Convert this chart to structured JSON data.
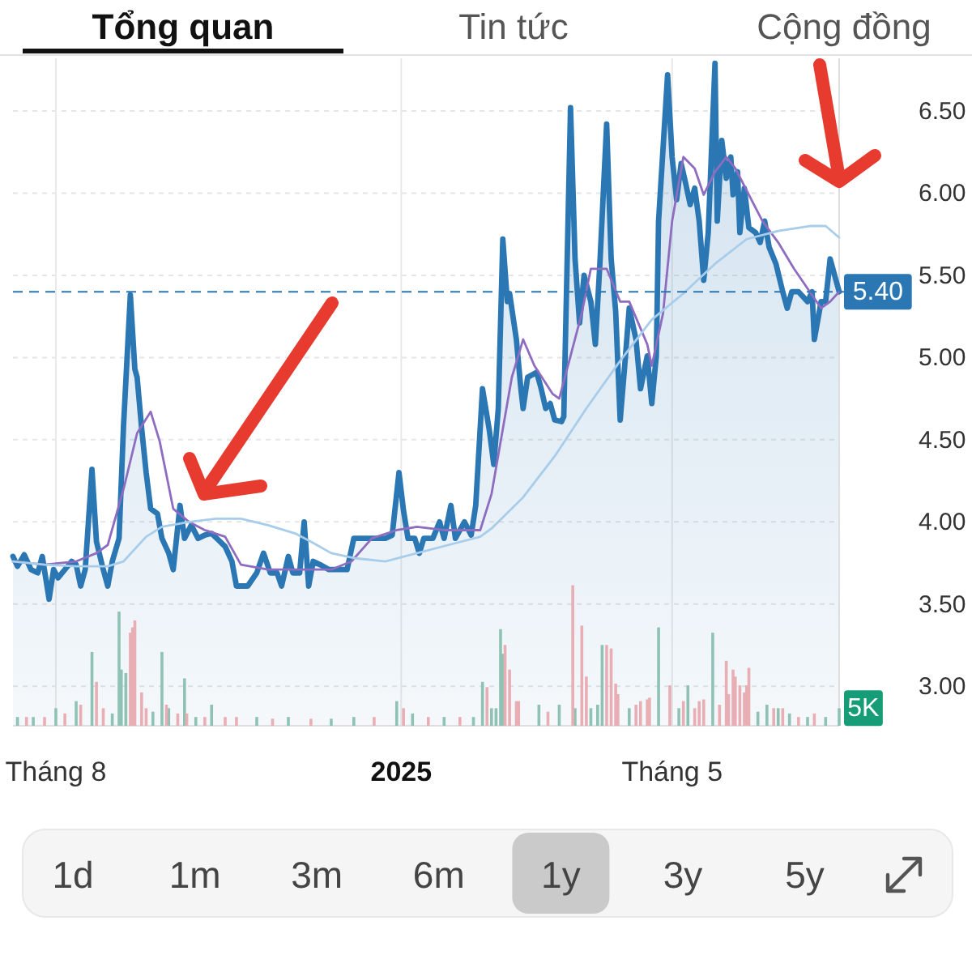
{
  "chart_data": [
    {
      "type": "other",
      "annotations": [
        "Tổng quan",
        "Tin tức",
        "Cộng đồng"
      ]
    },
    {
      "type": "area",
      "xlim": [
        "2024-07-13",
        "2025-07-14"
      ],
      "xticks": [
        {
          "value": "2024-08-01",
          "label": "Tháng 8"
        },
        {
          "value": "2025-01-01",
          "label": "2025"
        },
        {
          "value": "2025-05-01",
          "label": "Tháng 5"
        }
      ],
      "ylim": [
        2.76,
        6.82
      ],
      "yticks": [
        {
          "value": 3,
          "label": "3.00"
        },
        {
          "value": 3.5,
          "label": "3.50"
        },
        {
          "value": 4,
          "label": "4.00"
        },
        {
          "value": 4.5,
          "label": "4.50"
        },
        {
          "value": 5,
          "label": "5.00"
        },
        {
          "value": 5.5,
          "label": "5.50"
        },
        {
          "value": 6,
          "label": "6.00"
        },
        {
          "value": 6.5,
          "label": "6.50"
        }
      ],
      "y2lim": [
        0,
        190000
      ],
      "grid": true,
      "ref_lines": [
        {
          "axis": "y",
          "value": 5.4,
          "label": "5.40",
          "color": "#2a77b4",
          "line_style": "dashed"
        }
      ],
      "series": [
        {
          "type": "area",
          "color": "#2a77b4",
          "x": [
            "2024-07-13",
            "2024-07-15",
            "2024-07-18",
            "2024-07-21",
            "2024-07-24",
            "2024-07-26",
            "2024-07-29",
            "2024-07-31",
            "2024-08-02",
            "2024-08-05",
            "2024-08-08",
            "2024-08-10",
            "2024-08-12",
            "2024-08-14",
            "2024-08-17",
            "2024-08-19",
            "2024-08-22",
            "2024-08-24",
            "2024-08-26",
            "2024-08-29",
            "2024-08-31",
            "2024-09-03",
            "2024-09-05",
            "2024-09-06",
            "2024-09-08",
            "2024-09-10",
            "2024-09-12",
            "2024-09-15",
            "2024-09-17",
            "2024-09-20",
            "2024-09-22",
            "2024-09-25",
            "2024-09-27",
            "2024-09-30",
            "2024-10-03",
            "2024-10-06",
            "2024-10-09",
            "2024-10-12",
            "2024-10-15",
            "2024-10-18",
            "2024-10-20",
            "2024-10-25",
            "2024-10-29",
            "2024-11-01",
            "2024-11-04",
            "2024-11-07",
            "2024-11-09",
            "2024-11-12",
            "2024-11-14",
            "2024-11-17",
            "2024-11-19",
            "2024-11-21",
            "2024-11-23",
            "2024-11-26",
            "2024-11-30",
            "2024-12-05",
            "2024-12-08",
            "2024-12-11",
            "2024-12-15",
            "2024-12-20",
            "2024-12-25",
            "2024-12-28",
            "2024-12-31",
            "2025-01-02",
            "2025-01-04",
            "2025-01-07",
            "2025-01-09",
            "2025-01-11",
            "2025-01-15",
            "2025-01-18",
            "2025-01-20",
            "2025-01-23",
            "2025-01-25",
            "2025-01-29",
            "2025-02-01",
            "2025-02-03",
            "2025-02-06",
            "2025-02-09",
            "2025-02-11",
            "2025-02-13",
            "2025-02-15",
            "2025-02-17",
            "2025-02-18",
            "2025-02-21",
            "2025-02-23",
            "2025-02-24",
            "2025-02-26",
            "2025-03-02",
            "2025-03-04",
            "2025-03-06",
            "2025-03-08",
            "2025-03-10",
            "2025-03-13",
            "2025-03-14",
            "2025-03-17",
            "2025-03-19",
            "2025-03-21",
            "2025-03-23",
            "2025-03-26",
            "2025-03-28",
            "2025-03-30",
            "2025-04-02",
            "2025-04-04",
            "2025-04-06",
            "2025-04-08",
            "2025-04-10",
            "2025-04-12",
            "2025-04-15",
            "2025-04-17",
            "2025-04-20",
            "2025-04-22",
            "2025-04-24",
            "2025-04-25",
            "2025-04-29",
            "2025-05-01",
            "2025-05-03",
            "2025-05-05",
            "2025-05-07",
            "2025-05-09",
            "2025-05-11",
            "2025-05-13",
            "2025-05-15",
            "2025-05-17",
            "2025-05-20",
            "2025-05-21",
            "2025-05-23",
            "2025-05-25",
            "2025-05-27",
            "2025-05-28",
            "2025-05-30",
            "2025-05-31",
            "2025-06-02",
            "2025-06-04",
            "2025-06-07",
            "2025-06-09",
            "2025-06-11",
            "2025-06-13",
            "2025-06-16",
            "2025-06-19",
            "2025-06-21",
            "2025-06-23",
            "2025-06-26",
            "2025-06-30",
            "2025-07-02",
            "2025-07-03",
            "2025-07-06",
            "2025-07-08",
            "2025-07-10",
            "2025-07-12",
            "2025-07-14"
          ],
          "values": [
            3.79,
            3.73,
            3.8,
            3.71,
            3.69,
            3.79,
            3.53,
            3.71,
            3.66,
            3.71,
            3.76,
            3.74,
            3.61,
            3.71,
            4.32,
            3.88,
            3.71,
            3.61,
            3.76,
            3.9,
            4.59,
            5.38,
            4.93,
            4.88,
            4.57,
            4.3,
            4.08,
            4.05,
            3.9,
            3.81,
            3.71,
            4.1,
            3.9,
            3.98,
            3.9,
            3.92,
            3.93,
            3.89,
            3.85,
            3.76,
            3.61,
            3.61,
            3.69,
            3.81,
            3.69,
            3.69,
            3.61,
            3.79,
            3.69,
            3.69,
            4.0,
            3.61,
            3.76,
            3.74,
            3.71,
            3.71,
            3.71,
            3.9,
            3.9,
            3.9,
            3.9,
            3.92,
            4.3,
            4.07,
            3.9,
            3.9,
            3.81,
            3.9,
            3.9,
            4.0,
            3.9,
            4.1,
            3.9,
            4.0,
            3.92,
            4.1,
            4.81,
            4.56,
            4.35,
            4.69,
            5.72,
            5.34,
            5.39,
            5.11,
            4.81,
            4.69,
            4.88,
            4.91,
            4.81,
            4.69,
            4.72,
            4.62,
            4.61,
            4.64,
            6.52,
            5.6,
            5.21,
            5.5,
            5.34,
            5.08,
            5.57,
            6.42,
            5.6,
            5.28,
            4.62,
            4.95,
            5.3,
            5.11,
            4.81,
            5.01,
            4.72,
            5.01,
            5.83,
            6.72,
            6.22,
            5.96,
            6.18,
            6.06,
            5.93,
            6.03,
            5.83,
            5.47,
            5.76,
            6.79,
            5.83,
            6.32,
            6.09,
            6.22,
            5.99,
            6.13,
            5.76,
            6.03,
            5.79,
            5.76,
            5.7,
            5.83,
            5.67,
            5.57,
            5.4,
            5.3,
            5.4,
            5.4,
            5.34,
            5.4,
            5.11,
            5.34,
            5.34,
            5.6,
            5.5,
            5.4
          ]
        },
        {
          "type": "line",
          "color": "#8e6cc0",
          "x": [
            "2024-07-13",
            "2024-07-27",
            "2024-08-10",
            "2024-08-19",
            "2024-08-24",
            "2024-08-31",
            "2024-09-06",
            "2024-09-12",
            "2024-09-16",
            "2024-09-22",
            "2024-09-29",
            "2024-10-06",
            "2024-10-15",
            "2024-10-22",
            "2024-11-03",
            "2024-11-17",
            "2024-12-01",
            "2024-12-10",
            "2024-12-19",
            "2024-12-30",
            "2025-01-08",
            "2025-01-20",
            "2025-02-05",
            "2025-02-10",
            "2025-02-19",
            "2025-02-24",
            "2025-03-01",
            "2025-03-09",
            "2025-03-12",
            "2025-03-22",
            "2025-03-26",
            "2025-04-02",
            "2025-04-08",
            "2025-04-12",
            "2025-04-20",
            "2025-04-22",
            "2025-04-27",
            "2025-05-01",
            "2025-05-06",
            "2025-05-11",
            "2025-05-15",
            "2025-05-20",
            "2025-05-25",
            "2025-05-29",
            "2025-06-04",
            "2025-06-10",
            "2025-06-17",
            "2025-06-24",
            "2025-07-01",
            "2025-07-06",
            "2025-07-10",
            "2025-07-14"
          ],
          "values": [
            3.76,
            3.74,
            3.76,
            3.81,
            3.86,
            4.2,
            4.54,
            4.67,
            4.49,
            4.08,
            4.0,
            3.95,
            3.91,
            3.74,
            3.71,
            3.71,
            3.71,
            3.76,
            3.9,
            3.95,
            3.97,
            3.95,
            3.95,
            4.17,
            4.88,
            5.11,
            4.95,
            4.78,
            4.75,
            5.27,
            5.54,
            5.54,
            5.34,
            5.34,
            5.08,
            4.95,
            5.27,
            5.83,
            6.22,
            6.15,
            5.99,
            6.13,
            6.22,
            6.15,
            5.99,
            5.83,
            5.7,
            5.54,
            5.4,
            5.3,
            5.34,
            5.4
          ]
        },
        {
          "type": "line",
          "color": "#a8cdea",
          "x": [
            "2024-07-13",
            "2024-07-27",
            "2024-08-10",
            "2024-08-24",
            "2024-08-31",
            "2024-09-10",
            "2024-09-17",
            "2024-09-29",
            "2024-10-11",
            "2024-10-22",
            "2024-11-03",
            "2024-11-15",
            "2024-11-22",
            "2024-12-01",
            "2024-12-11",
            "2024-12-25",
            "2025-01-08",
            "2025-01-22",
            "2025-02-05",
            "2025-02-10",
            "2025-02-24",
            "2025-03-10",
            "2025-03-24",
            "2025-04-08",
            "2025-04-22",
            "2025-05-06",
            "2025-05-20",
            "2025-06-03",
            "2025-06-17",
            "2025-07-01",
            "2025-07-08",
            "2025-07-14"
          ],
          "values": [
            3.76,
            3.74,
            3.73,
            3.73,
            3.76,
            3.91,
            3.97,
            4.0,
            4.02,
            4.02,
            3.98,
            3.93,
            3.88,
            3.81,
            3.78,
            3.76,
            3.81,
            3.86,
            3.91,
            3.96,
            4.15,
            4.4,
            4.69,
            4.98,
            5.23,
            5.39,
            5.57,
            5.72,
            5.77,
            5.8,
            5.8,
            5.73
          ]
        },
        {
          "type": "bar",
          "axis": "y2",
          "color": "#8fc2b4",
          "x": [
            "2024-07-15",
            "2024-07-22",
            "2024-08-01",
            "2024-08-10",
            "2024-08-17",
            "2024-08-26",
            "2024-08-29",
            "2024-08-30",
            "2024-09-01",
            "2024-09-13",
            "2024-09-17",
            "2024-09-20",
            "2024-09-27",
            "2024-10-02",
            "2024-10-09",
            "2024-10-29",
            "2024-11-12",
            "2024-12-01",
            "2024-12-11",
            "2024-12-30",
            "2025-01-06",
            "2025-01-20",
            "2025-02-02",
            "2025-02-06",
            "2025-02-10",
            "2025-02-12",
            "2025-02-14",
            "2025-02-15",
            "2025-03-03",
            "2025-03-12",
            "2025-03-19",
            "2025-03-26",
            "2025-03-29",
            "2025-03-31",
            "2025-04-12",
            "2025-04-25",
            "2025-05-04",
            "2025-05-08",
            "2025-05-19",
            "2025-06-08",
            "2025-06-12",
            "2025-06-17",
            "2025-06-22",
            "2025-06-30",
            "2025-07-08",
            "2025-07-14"
          ],
          "values": [
            2500,
            2500,
            5000,
            7000,
            21000,
            3500,
            32500,
            16000,
            15000,
            4000,
            21000,
            5000,
            13500,
            2500,
            6000,
            2500,
            2500,
            2000,
            2500,
            7000,
            3500,
            2500,
            2500,
            12500,
            5000,
            5000,
            27500,
            20500,
            6000,
            6000,
            5000,
            5000,
            6000,
            23000,
            5000,
            28000,
            5000,
            11500,
            26500,
            4000,
            6000,
            5000,
            3500,
            2500,
            2500,
            5000
          ],
          "value_labels": [
            null,
            null,
            null,
            null,
            null,
            null,
            null,
            null,
            null,
            null,
            null,
            null,
            null,
            null,
            null,
            null,
            null,
            null,
            null,
            null,
            null,
            null,
            null,
            null,
            null,
            null,
            null,
            null,
            null,
            null,
            null,
            null,
            null,
            null,
            null,
            null,
            null,
            null,
            null,
            null,
            null,
            null,
            null,
            null,
            null,
            "5K"
          ]
        },
        {
          "type": "bar",
          "axis": "y2",
          "color": "#e9aeb4",
          "x": [
            "2024-07-19",
            "2024-07-27",
            "2024-08-05",
            "2024-08-12",
            "2024-08-19",
            "2024-08-22",
            "2024-09-03",
            "2024-09-04",
            "2024-09-05",
            "2024-09-08",
            "2024-09-10",
            "2024-09-19",
            "2024-09-24",
            "2024-09-28",
            "2024-10-06",
            "2024-10-15",
            "2024-10-20",
            "2024-11-05",
            "2024-11-22",
            "2024-12-20",
            "2025-01-02",
            "2025-01-13",
            "2025-01-27",
            "2025-02-08",
            "2025-02-16",
            "2025-02-18",
            "2025-02-21",
            "2025-02-22",
            "2025-03-07",
            "2025-03-18",
            "2025-03-22",
            "2025-03-24",
            "2025-04-02",
            "2025-04-04",
            "2025-04-06",
            "2025-04-07",
            "2025-04-15",
            "2025-04-17",
            "2025-04-20",
            "2025-04-21",
            "2025-04-30",
            "2025-05-06",
            "2025-05-11",
            "2025-05-13",
            "2025-05-15",
            "2025-05-22",
            "2025-05-25",
            "2025-05-26",
            "2025-05-28",
            "2025-05-29",
            "2025-05-31",
            "2025-06-02",
            "2025-06-03",
            "2025-06-04",
            "2025-06-15",
            "2025-06-19",
            "2025-06-26",
            "2025-07-03"
          ],
          "values": [
            2500,
            2500,
            3500,
            6000,
            12500,
            5000,
            26500,
            28000,
            30000,
            9500,
            5000,
            6000,
            3500,
            3500,
            2500,
            2500,
            2500,
            2000,
            2000,
            2500,
            5000,
            2500,
            2500,
            11000,
            23000,
            16000,
            7000,
            7000,
            4000,
            40000,
            28500,
            14000,
            23000,
            22000,
            12000,
            9000,
            6000,
            7000,
            7500,
            8000,
            11500,
            7000,
            5000,
            7000,
            7500,
            6000,
            18500,
            9000,
            16000,
            14000,
            11500,
            9500,
            11500,
            16500,
            5000,
            5000,
            2500,
            3500
          ]
        }
      ]
    },
    {
      "type": "other",
      "annotations": [
        "1d",
        "1m",
        "3m",
        "6m",
        "1y",
        "3y",
        "5y"
      ]
    }
  ]
}
